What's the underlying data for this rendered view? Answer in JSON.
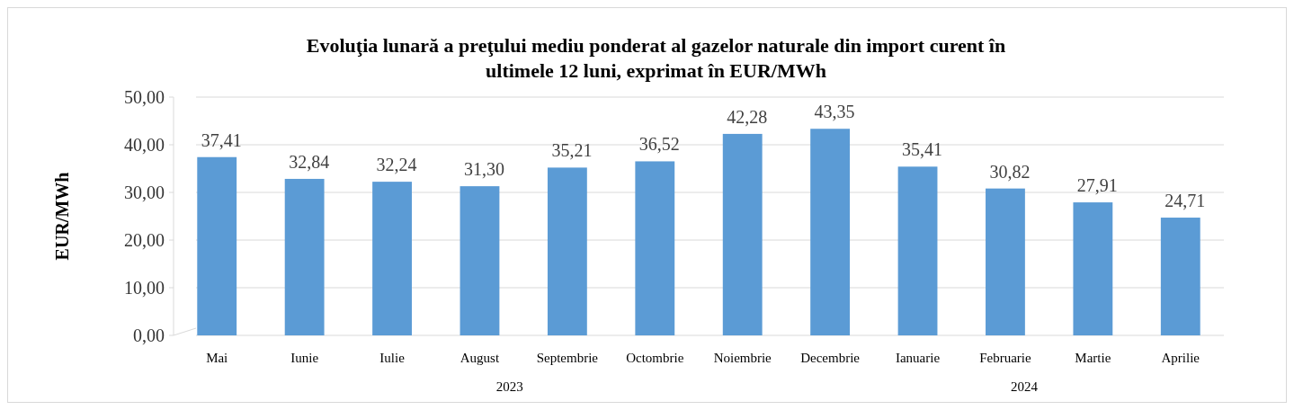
{
  "chart_data": {
    "type": "bar",
    "title": "Evoluţia lunară a preţului mediu ponderat al gazelor naturale din import curent în ultimele 12 luni, exprimat în EUR/MWh",
    "ylabel": "EUR/MWh",
    "categories": [
      "Mai",
      "Iunie",
      "Iulie",
      "August",
      "Septembrie",
      "Octombrie",
      "Noiembrie",
      "Decembrie",
      "Ianuarie",
      "Februarie",
      "Martie",
      "Aprilie"
    ],
    "values": [
      37.41,
      32.84,
      32.24,
      31.3,
      35.21,
      36.52,
      42.28,
      43.35,
      35.41,
      30.82,
      27.91,
      24.71
    ],
    "value_labels": [
      "37,41",
      "32,84",
      "32,24",
      "31,30",
      "35,21",
      "36,52",
      "42,28",
      "43,35",
      "35,41",
      "30,82",
      "27,91",
      "24,71"
    ],
    "color": "#5b9bd5",
    "ylim": [
      0,
      50
    ],
    "yticks": [
      {
        "value": 0,
        "label": "0,00"
      },
      {
        "value": 10,
        "label": "10,00"
      },
      {
        "value": 20,
        "label": "20,00"
      },
      {
        "value": 30,
        "label": "30,00"
      },
      {
        "value": 40,
        "label": "40,00"
      },
      {
        "value": 50,
        "label": "50,00"
      }
    ],
    "grid": "y",
    "annotations": [
      "2023",
      "2024"
    ]
  }
}
